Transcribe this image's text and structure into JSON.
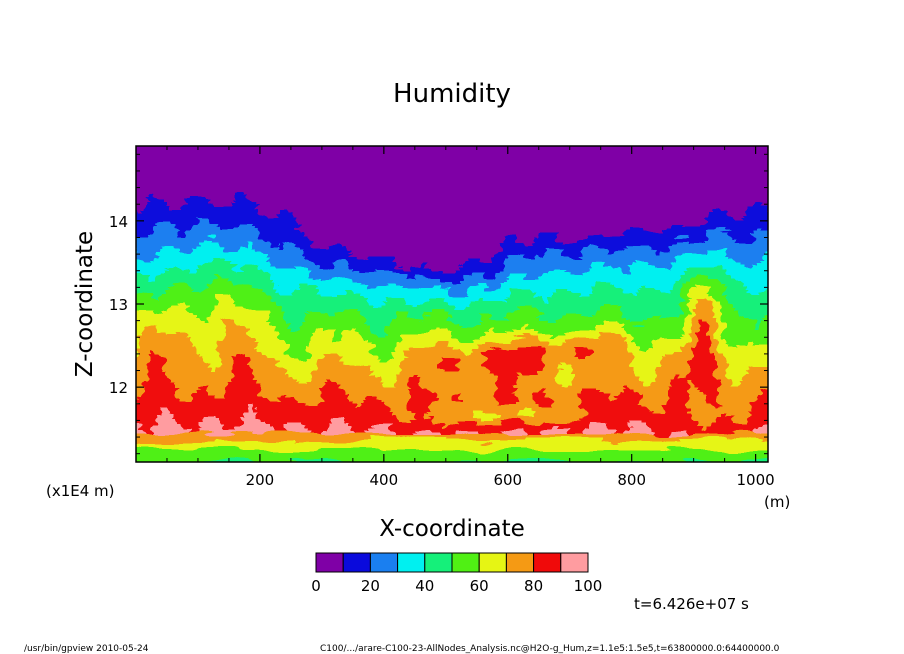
{
  "chart_data": {
    "type": "heatmap",
    "title": "Humidity",
    "xlabel": "X-coordinate",
    "ylabel": "Z-coordinate",
    "x_unit": "(m)",
    "y_multiplier": "(x1E4 m)",
    "xlim": [
      0,
      1020
    ],
    "ylim": [
      11.1,
      14.9
    ],
    "x_ticks": [
      200,
      400,
      600,
      800,
      1000
    ],
    "x_tick_labels": [
      "200",
      "400",
      "600",
      "800",
      "1000"
    ],
    "y_ticks": [
      12,
      13,
      14
    ],
    "y_tick_labels": [
      "12",
      "13",
      "14"
    ],
    "colorbar": {
      "levels": [
        0,
        10,
        20,
        30,
        40,
        50,
        60,
        70,
        80,
        90,
        100
      ],
      "tick_labels": [
        "0",
        "20",
        "40",
        "60",
        "80",
        "100"
      ],
      "colors": [
        "#7f00a6",
        "#0a0adc",
        "#1a7ff0",
        "#00f0f0",
        "#15f07a",
        "#50f014",
        "#e6f514",
        "#f59a14",
        "#f00a0a",
        "#ff9ca0"
      ]
    },
    "time_label": "t=6.426e+07 s",
    "grid": false
  },
  "footer": {
    "left": "/usr/bin/gpview   2010-05-24",
    "right": "C100/.../arare-C100-23-AllNodes_Analysis.nc@H2O-g_Hum,z=1.1e5:1.5e5,t=63800000.0:64400000.0"
  }
}
